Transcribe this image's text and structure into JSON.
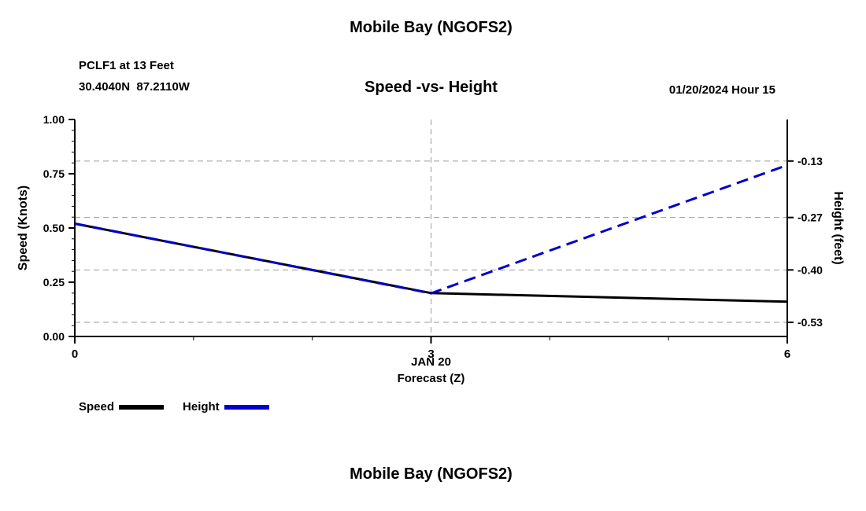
{
  "page": {
    "top_title": "Mobile Bay (NGOFS2)",
    "bottom_title": "Mobile Bay (NGOFS2)"
  },
  "chart_data": {
    "type": "line",
    "title": "Speed -vs- Height",
    "station": "PCLF1 at 13 Feet",
    "coordinates": "30.4040N  87.2110W",
    "datetime": "01/20/2024 Hour 15",
    "legend_position": "bottom-left",
    "x_axis": {
      "label_line1": "JAN 20",
      "label_line2": "Forecast (Z)",
      "range": [
        0,
        6
      ],
      "major_ticks": [
        {
          "v": 0,
          "label": "0"
        },
        {
          "v": 3,
          "label": "3"
        },
        {
          "v": 6,
          "label": "6"
        }
      ],
      "minor_step": 1,
      "grid_at": [
        3
      ]
    },
    "left_axis": {
      "label": "Speed (Knots)",
      "range": [
        0,
        1
      ],
      "major_ticks": [
        {
          "v": 0,
          "label": "0.00"
        },
        {
          "v": 0.25,
          "label": "0.25"
        },
        {
          "v": 0.5,
          "label": "0.50"
        },
        {
          "v": 0.75,
          "label": "0.75"
        },
        {
          "v": 1,
          "label": "1.00"
        }
      ],
      "minor_step": 0.05
    },
    "right_axis": {
      "label": "Height (feet)",
      "range": [
        -0.565,
        -0.027
      ],
      "major_ticks": [
        {
          "v": -0.53,
          "label": "-0.53"
        },
        {
          "v": -0.4,
          "label": "-0.40"
        },
        {
          "v": -0.27,
          "label": "-0.27"
        },
        {
          "v": -0.13,
          "label": "-0.13"
        }
      ],
      "grid": true
    },
    "series": [
      {
        "name": "Speed",
        "axis": "left",
        "color": "#000000",
        "dash": "",
        "width": 3,
        "x": [
          0,
          3,
          6
        ],
        "y": [
          0.52,
          0.2,
          0.16
        ]
      },
      {
        "name": "Height",
        "axis": "right",
        "color": "#0000cc",
        "dash": "15,8",
        "width": 3,
        "x": [
          0,
          3,
          6
        ],
        "y": [
          -0.285,
          -0.458,
          -0.14
        ]
      }
    ],
    "colors": {
      "grid": "#9a9a9a",
      "axis": "#000000"
    }
  }
}
